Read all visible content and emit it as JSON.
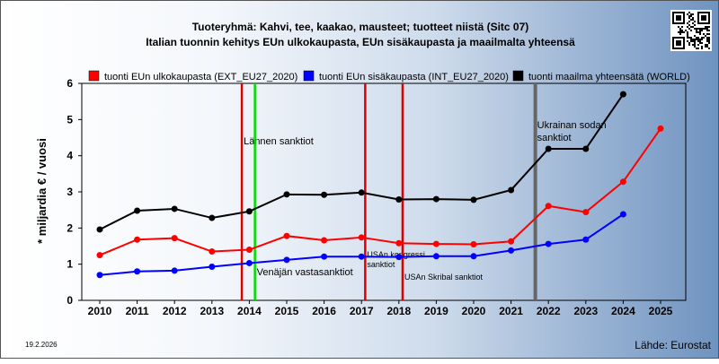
{
  "chart_data": {
    "type": "line",
    "title": "Tuoteryhmä: Kahvi, tee, kaakao, mausteet; tuotteet niistä (Sitc 07)",
    "subtitle": "Italian tuonnin kehitys EUn ulkokaupasta, EUn sisäkaupasta ja maailmalta yhteensä",
    "ylabel": "* miljardia € / vuosi",
    "xlabel": "",
    "ylim": [
      0,
      6
    ],
    "yticks": [
      "0",
      "1",
      "2",
      "3",
      "4",
      "5",
      "6"
    ],
    "categories": [
      "2010",
      "2011",
      "2012",
      "2013",
      "2014",
      "2015",
      "2016",
      "2017",
      "2018",
      "2019",
      "2020",
      "2021",
      "2022",
      "2023",
      "2024",
      "2025"
    ],
    "grid": false,
    "legend": "top",
    "series": [
      {
        "name": "tuonti EUn ulkokaupasta (EXT_EU27_2020)",
        "color": "#ff0000",
        "values": [
          1.25,
          1.68,
          1.72,
          1.35,
          1.4,
          1.78,
          1.66,
          1.74,
          1.58,
          1.56,
          1.55,
          1.63,
          2.61,
          2.44,
          3.28,
          4.75
        ]
      },
      {
        "name": "tuonti EUn sisäkaupasta (INT_EU27_2020)",
        "color": "#0000ff",
        "values": [
          0.7,
          0.8,
          0.82,
          0.93,
          1.03,
          1.12,
          1.21,
          1.21,
          1.2,
          1.22,
          1.22,
          1.38,
          1.56,
          1.68,
          2.38,
          null
        ]
      },
      {
        "name": "tuonti maailma yhteensätä (WORLD)",
        "color": "#000000",
        "values": [
          1.96,
          2.48,
          2.53,
          2.28,
          2.46,
          2.93,
          2.92,
          2.98,
          2.79,
          2.8,
          2.78,
          3.05,
          4.19,
          4.19,
          5.7,
          null
        ]
      }
    ],
    "events": [
      {
        "position": 2013.8,
        "color": "#dd0000",
        "label": "Lännen sanktiot",
        "label_size": "normal"
      },
      {
        "position": 2014.15,
        "color": "#00dd00",
        "label": "Venäjän vastasanktiot",
        "label_size": "normal"
      },
      {
        "position": 2017.1,
        "color": "#dd0000",
        "label": "USAn kongressi sanktiot",
        "label_size": "small"
      },
      {
        "position": 2018.1,
        "color": "#dd0000",
        "label": "USAn Skribal sanktiot",
        "label_size": "small"
      },
      {
        "position": 2021.65,
        "color": "#666666",
        "label": "Ukrainan sodan sanktiot",
        "label_size": "normal"
      }
    ]
  },
  "footer": {
    "date": "19.2.2026",
    "source": "Lähde: Eurostat"
  }
}
